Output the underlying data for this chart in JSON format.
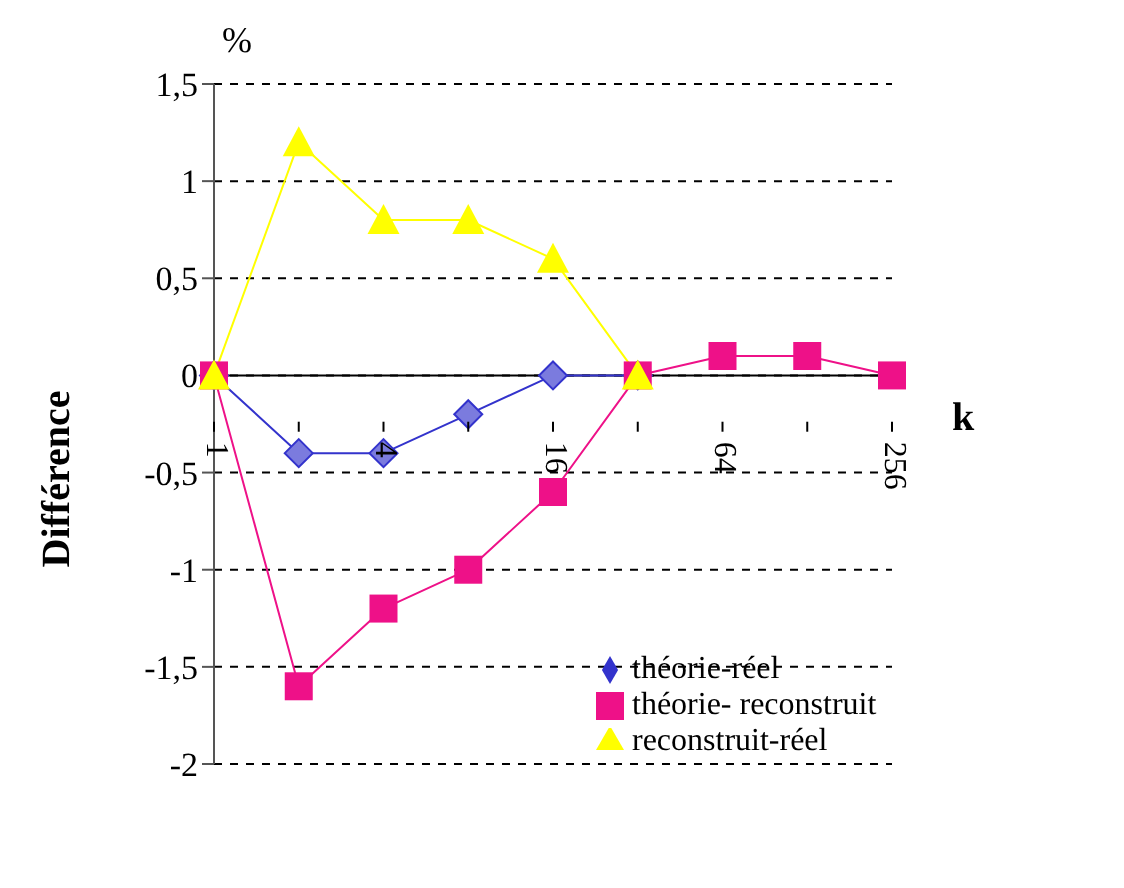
{
  "chart_data": {
    "type": "line",
    "ylabel": "Différence",
    "xlabel": "k",
    "annotations": [
      "%"
    ],
    "categories": [
      "1",
      null,
      "4",
      null,
      "16",
      null,
      "64",
      null,
      "256"
    ],
    "series": [
      {
        "name": "théorie-réel",
        "color": "#3333cc",
        "marker": "diamond",
        "values": [
          0,
          -0.4,
          -0.4,
          -0.2,
          0,
          0,
          null,
          null,
          null
        ]
      },
      {
        "name": "théorie- reconstruit",
        "color": "#ee1188",
        "marker": "square",
        "values": [
          0,
          -1.6,
          -1.2,
          -1,
          -0.6,
          0,
          0.1,
          0.1,
          0
        ]
      },
      {
        "name": "reconstruit-réel",
        "color": "#ffff00",
        "marker": "triangle",
        "values": [
          0,
          1.2,
          0.8,
          0.8,
          0.6,
          0,
          null,
          null,
          null
        ]
      }
    ],
    "ylim": [
      -2,
      1.5
    ],
    "yticks": [
      {
        "value": -2,
        "label": "-2"
      },
      {
        "value": -1.5,
        "label": "-1,5"
      },
      {
        "value": -1,
        "label": "-1"
      },
      {
        "value": -0.5,
        "label": "-0,5"
      },
      {
        "value": 0,
        "label": "0"
      },
      {
        "value": 0.5,
        "label": "0,5"
      },
      {
        "value": 1,
        "label": "1"
      },
      {
        "value": 1.5,
        "label": "1,5"
      }
    ],
    "grid": "y",
    "legend": "bottom right"
  }
}
